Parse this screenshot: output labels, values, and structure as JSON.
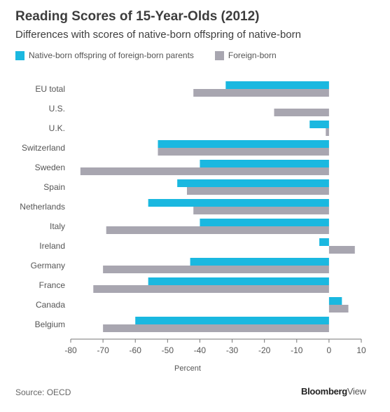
{
  "title": "Reading Scores of 15-Year-Olds (2012)",
  "subtitle": "Differences with scores of native-born offspring of native-born",
  "source": "Source: OECD",
  "brand": {
    "name": "Bloomberg",
    "suffix": "View"
  },
  "colors": {
    "series1": "#1ab8e0",
    "series2": "#a8a6b0",
    "axis": "#555555"
  },
  "chart_data": {
    "type": "bar",
    "orientation": "horizontal",
    "title": "Reading Scores of 15-Year-Olds (2012)",
    "subtitle": "Differences with scores of native-born offspring of native-born",
    "categories": [
      "EU total",
      "U.S.",
      "U.K.",
      "Switzerland",
      "Sweden",
      "Spain",
      "Netherlands",
      "Italy",
      "Ireland",
      "Germany",
      "France",
      "Canada",
      "Belgium"
    ],
    "series": [
      {
        "name": "Native-born offspring of foreign-born parents",
        "values": [
          -32,
          null,
          -6,
          -53,
          -40,
          -47,
          -56,
          -40,
          -3,
          -43,
          -56,
          4,
          -60
        ]
      },
      {
        "name": "Foreign-born",
        "values": [
          -42,
          -17,
          -1,
          -53,
          -77,
          -44,
          -42,
          -69,
          8,
          -70,
          -73,
          6,
          -70
        ]
      }
    ],
    "xlabel": "Percent",
    "xlim": [
      -80,
      10
    ],
    "xticks": [
      -80,
      -70,
      -60,
      -50,
      -40,
      -30,
      -20,
      -10,
      0,
      10
    ],
    "legend": "top-left",
    "grid": false
  }
}
